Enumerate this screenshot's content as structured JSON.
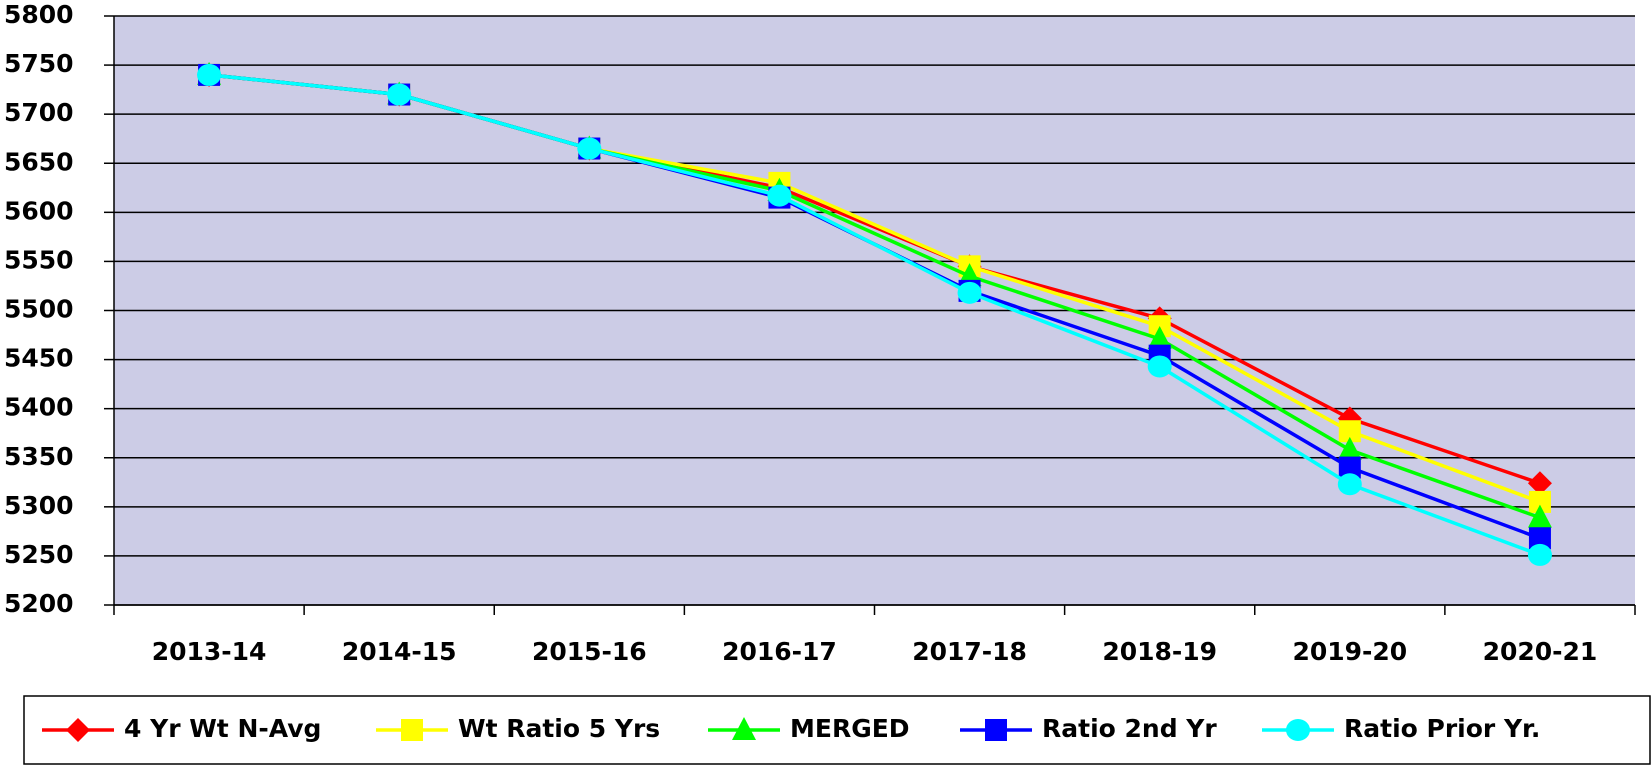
{
  "chart_data": {
    "type": "line",
    "categories": [
      "2013-14",
      "2014-15",
      "2015-16",
      "2016-17",
      "2017-18",
      "2018-19",
      "2019-20",
      "2020-21"
    ],
    "series": [
      {
        "name": "4 Yr Wt N-Avg",
        "color": "#ff0000",
        "marker": "diamond",
        "values": [
          5740,
          5720,
          5665,
          5625,
          5545,
          5492,
          5390,
          5324
        ]
      },
      {
        "name": "Wt Ratio 5 Yrs",
        "color": "#ffff00",
        "marker": "square",
        "values": [
          5740,
          5720,
          5665,
          5630,
          5545,
          5484,
          5377,
          5305
        ]
      },
      {
        "name": "MERGED",
        "color": "#00ff00",
        "marker": "triangle",
        "values": [
          5740,
          5720,
          5665,
          5622,
          5535,
          5471,
          5358,
          5289
        ]
      },
      {
        "name": "Ratio 2nd Yr",
        "color": "#0000ff",
        "marker": "square",
        "values": [
          5740,
          5720,
          5665,
          5615,
          5520,
          5454,
          5340,
          5268
        ]
      },
      {
        "name": "Ratio Prior Yr.",
        "color": "#00ffff",
        "marker": "circle",
        "values": [
          5740,
          5720,
          5665,
          5617,
          5518,
          5443,
          5323,
          5251
        ]
      }
    ],
    "ylim": [
      5200,
      5800
    ],
    "yticks": [
      5200,
      5250,
      5300,
      5350,
      5400,
      5450,
      5500,
      5550,
      5600,
      5650,
      5700,
      5750,
      5800
    ],
    "grid": true,
    "legend": "bottom"
  }
}
